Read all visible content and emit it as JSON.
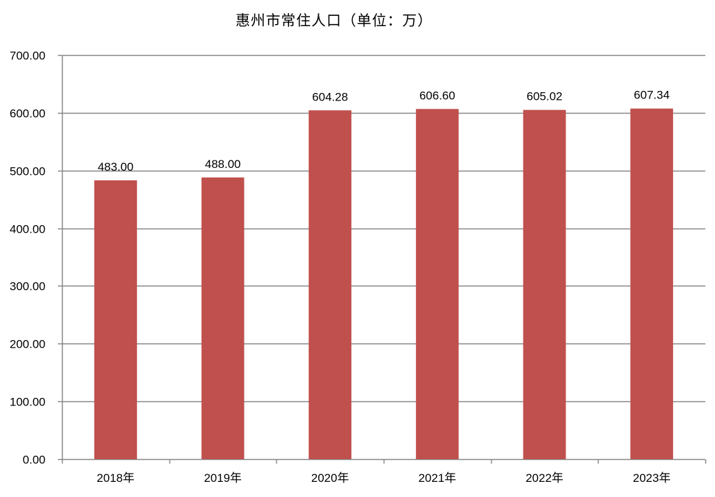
{
  "chart_data": {
    "type": "bar",
    "title": "惠州市常住人口（单位：万）",
    "categories": [
      "2018年",
      "2019年",
      "2020年",
      "2021年",
      "2022年",
      "2023年"
    ],
    "values": [
      483.0,
      488.0,
      604.28,
      606.6,
      605.02,
      607.34
    ],
    "data_labels": [
      "483.00",
      "488.00",
      "604.28",
      "606.60",
      "605.02",
      "607.34"
    ],
    "y_ticks": [
      "0.00",
      "100.00",
      "200.00",
      "300.00",
      "400.00",
      "500.00",
      "600.00",
      "700.00"
    ],
    "ylim": [
      0,
      700
    ],
    "xlabel": "",
    "ylabel": "",
    "grid": true,
    "legend": "none",
    "colors": {
      "bar": "#C0504D",
      "grid": "#868686",
      "axis": "#868686"
    }
  }
}
